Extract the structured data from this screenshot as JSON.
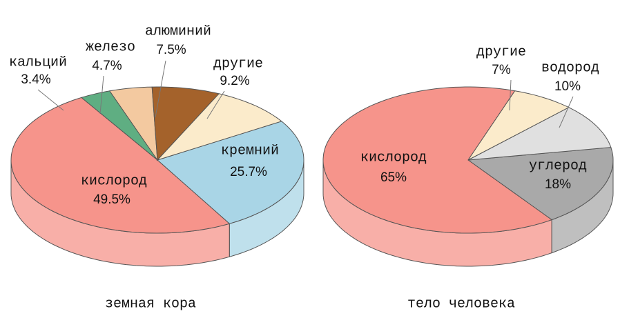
{
  "chart_data": [
    {
      "type": "pie",
      "title": "земная кора",
      "categories": [
        "кремний",
        "кислород",
        "кальций",
        "железо",
        "алюминий",
        "другие"
      ],
      "values": [
        25.7,
        49.5,
        3.4,
        4.7,
        7.5,
        9.2
      ],
      "value_labels": [
        "25.7%",
        "49.5%",
        "3.4%",
        "4.7%",
        "7.5%",
        "9.2%"
      ],
      "colors": [
        "#a9d5e6",
        "#f6948b",
        "#5fae82",
        "#f3c9a0",
        "#a4622b",
        "#fbebcb"
      ]
    },
    {
      "type": "pie",
      "title": "тело человека",
      "categories": [
        "углерод",
        "кислород",
        "другие",
        "водород"
      ],
      "values": [
        18,
        65,
        7,
        10
      ],
      "value_labels": [
        "18%",
        "65%",
        "7%",
        "10%"
      ],
      "colors": [
        "#a9a9a9",
        "#f6948b",
        "#fbebcb",
        "#e0e0e0"
      ]
    }
  ]
}
